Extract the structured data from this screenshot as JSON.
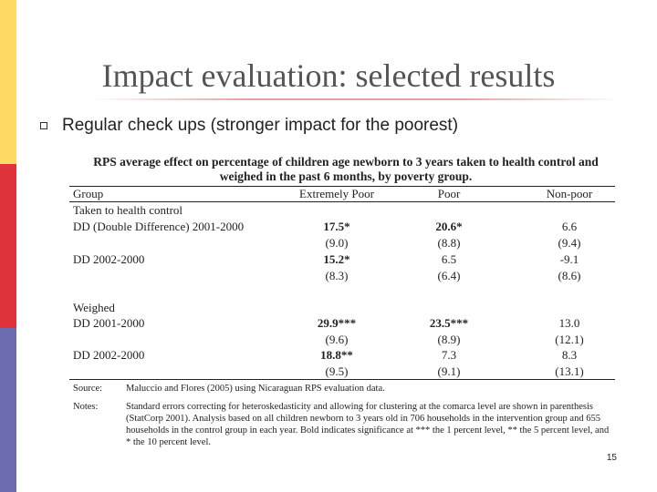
{
  "slide": {
    "title": "Impact evaluation: selected results",
    "bullet": "Regular check ups (stronger impact for the poorest)",
    "page_number": "15"
  },
  "table": {
    "caption": "RPS average effect on percentage of children age newborn to 3 years taken to health control and weighed in the past 6 months, by poverty group.",
    "headers": [
      "Group",
      "Extremely Poor",
      "Poor",
      "Non-poor"
    ],
    "rows": [
      {
        "label": "Taken to health control",
        "v1": "",
        "v2": "",
        "v3": ""
      },
      {
        "label": "DD (Double Difference) 2001-2000",
        "v1": "17.5*",
        "v2": "20.6*",
        "v3": "6.6"
      },
      {
        "label": "",
        "v1": "(9.0)",
        "v2": "(8.8)",
        "v3": "(9.4)"
      },
      {
        "label": "DD 2002-2000",
        "v1": "15.2*",
        "v2": "6.5",
        "v3": "-9.1"
      },
      {
        "label": "",
        "v1": "(8.3)",
        "v2": "(6.4)",
        "v3": "(8.6)"
      },
      {
        "label": "Weighed",
        "v1": "",
        "v2": "",
        "v3": ""
      },
      {
        "label": "DD 2001-2000",
        "v1": "29.9***",
        "v2": "23.5***",
        "v3": "13.0"
      },
      {
        "label": "",
        "v1": "(9.6)",
        "v2": "(8.9)",
        "v3": "(12.1)"
      },
      {
        "label": "DD 2002-2000",
        "v1": "18.8**",
        "v2": "7.3",
        "v3": "8.3"
      },
      {
        "label": "",
        "v1": "(9.5)",
        "v2": "(9.1)",
        "v3": "(13.1)"
      }
    ],
    "source_label": "Source:",
    "source_text": "Maluccio and Flores (2005) using Nicaraguan RPS evaluation data.",
    "notes_label": "Notes:",
    "notes_text": "Standard errors correcting for heteroskedasticity and allowing for clustering at the comarca level are shown in parenthesis (StatCorp 2001). Analysis based on all children newborn to 3 years old in 706 households in the intervention group and 655 households in the control group in each year. Bold indicates significance at *** the 1 percent level, ** the 5 percent level, and * the 10 percent level."
  }
}
